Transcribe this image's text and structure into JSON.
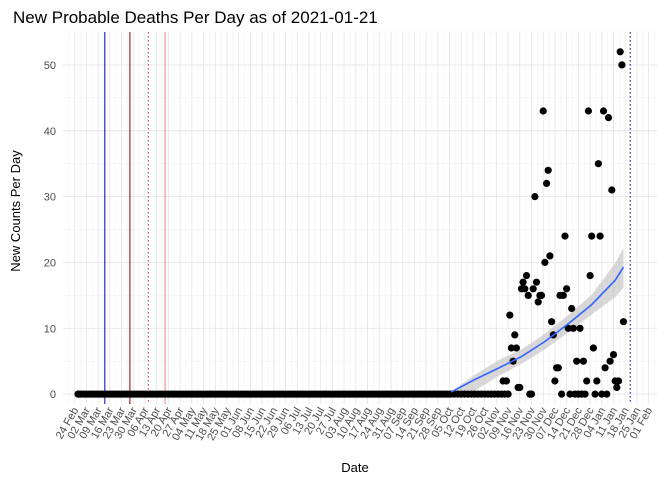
{
  "chart_data": {
    "type": "scatter",
    "title": "New Probable Deaths Per Day as of 2021-01-21",
    "xlabel": "Date",
    "ylabel": "New Counts Per Day",
    "x_ticks": [
      "24 Feb",
      "02 Mar",
      "09 Mar",
      "16 Mar",
      "23 Mar",
      "30 Mar",
      "06 Apr",
      "13 Apr",
      "20 Apr",
      "27 Apr",
      "04 May",
      "11 May",
      "18 May",
      "25 May",
      "01 Jun",
      "08 Jun",
      "15 Jun",
      "22 Jun",
      "29 Jun",
      "06 Jul",
      "13 Jul",
      "20 Jul",
      "27 Jul",
      "03 Aug",
      "10 Aug",
      "17 Aug",
      "24 Aug",
      "31 Aug",
      "07 Sep",
      "14 Sep",
      "21 Sep",
      "28 Sep",
      "05 Oct",
      "12 Oct",
      "19 Oct",
      "26 Oct",
      "02 Nov",
      "09 Nov",
      "16 Nov",
      "23 Nov",
      "30 Nov",
      "07 Dec",
      "14 Dec",
      "21 Dec",
      "28 Dec",
      "04 Jan",
      "11 Jan",
      "18 Jan",
      "25 Jan",
      "01 Feb"
    ],
    "y_ticks": [
      "0",
      "10",
      "20",
      "30",
      "40",
      "50"
    ],
    "ylim": [
      -1.5,
      55
    ],
    "grid": true,
    "reference_lines": [
      {
        "date": "2020-03-13",
        "color": "#0000cd",
        "style": "solid"
      },
      {
        "date": "2020-03-28",
        "color": "#8b0000",
        "style": "solid"
      },
      {
        "date": "2020-04-08",
        "color": "#cd2626",
        "style": "dotted"
      },
      {
        "date": "2020-04-18",
        "color": "#f08080",
        "style": "solid"
      },
      {
        "date": "2021-01-21",
        "color": "#00008b",
        "style": "dotted"
      }
    ],
    "point_color": "#000000",
    "smooth_color": "#3366ff",
    "band_color": "#bebebe",
    "zero_baseline": {
      "start": "2020-02-26",
      "end": "2020-10-05",
      "value": 0
    },
    "points": [
      {
        "x": "2020-10-06",
        "y": 0
      },
      {
        "x": "2020-10-08",
        "y": 0
      },
      {
        "x": "2020-10-10",
        "y": 0
      },
      {
        "x": "2020-10-12",
        "y": 0
      },
      {
        "x": "2020-10-14",
        "y": 0
      },
      {
        "x": "2020-10-16",
        "y": 0
      },
      {
        "x": "2020-10-18",
        "y": 0
      },
      {
        "x": "2020-10-20",
        "y": 0
      },
      {
        "x": "2020-10-22",
        "y": 0
      },
      {
        "x": "2020-10-24",
        "y": 0
      },
      {
        "x": "2020-10-26",
        "y": 0
      },
      {
        "x": "2020-10-28",
        "y": 0
      },
      {
        "x": "2020-10-30",
        "y": 0
      },
      {
        "x": "2020-11-01",
        "y": 0
      },
      {
        "x": "2020-11-03",
        "y": 0
      },
      {
        "x": "2020-11-05",
        "y": 0
      },
      {
        "x": "2020-11-06",
        "y": 2
      },
      {
        "x": "2020-11-07",
        "y": 0
      },
      {
        "x": "2020-11-08",
        "y": 2
      },
      {
        "x": "2020-11-09",
        "y": 0
      },
      {
        "x": "2020-11-10",
        "y": 12
      },
      {
        "x": "2020-11-11",
        "y": 7
      },
      {
        "x": "2020-11-12",
        "y": 5
      },
      {
        "x": "2020-11-13",
        "y": 9
      },
      {
        "x": "2020-11-14",
        "y": 7
      },
      {
        "x": "2020-11-15",
        "y": 1
      },
      {
        "x": "2020-11-16",
        "y": 1
      },
      {
        "x": "2020-11-17",
        "y": 16
      },
      {
        "x": "2020-11-18",
        "y": 17
      },
      {
        "x": "2020-11-19",
        "y": 16
      },
      {
        "x": "2020-11-20",
        "y": 18
      },
      {
        "x": "2020-11-21",
        "y": 15
      },
      {
        "x": "2020-11-22",
        "y": 0
      },
      {
        "x": "2020-11-23",
        "y": 0
      },
      {
        "x": "2020-11-24",
        "y": 16
      },
      {
        "x": "2020-11-25",
        "y": 30
      },
      {
        "x": "2020-11-26",
        "y": 17
      },
      {
        "x": "2020-11-27",
        "y": 14
      },
      {
        "x": "2020-11-28",
        "y": 15
      },
      {
        "x": "2020-11-29",
        "y": 15
      },
      {
        "x": "2020-11-30",
        "y": 43
      },
      {
        "x": "2020-12-01",
        "y": 20
      },
      {
        "x": "2020-12-02",
        "y": 32
      },
      {
        "x": "2020-12-03",
        "y": 34
      },
      {
        "x": "2020-12-04",
        "y": 21
      },
      {
        "x": "2020-12-05",
        "y": 11
      },
      {
        "x": "2020-12-06",
        "y": 9
      },
      {
        "x": "2020-12-07",
        "y": 2
      },
      {
        "x": "2020-12-08",
        "y": 4
      },
      {
        "x": "2020-12-09",
        "y": 4
      },
      {
        "x": "2020-12-10",
        "y": 15
      },
      {
        "x": "2020-12-11",
        "y": 0
      },
      {
        "x": "2020-12-12",
        "y": 15
      },
      {
        "x": "2020-12-13",
        "y": 24
      },
      {
        "x": "2020-12-14",
        "y": 16
      },
      {
        "x": "2020-12-15",
        "y": 10
      },
      {
        "x": "2020-12-16",
        "y": 0
      },
      {
        "x": "2020-12-17",
        "y": 13
      },
      {
        "x": "2020-12-18",
        "y": 10
      },
      {
        "x": "2020-12-19",
        "y": 0
      },
      {
        "x": "2020-12-20",
        "y": 5
      },
      {
        "x": "2020-12-21",
        "y": 0
      },
      {
        "x": "2020-12-22",
        "y": 10
      },
      {
        "x": "2020-12-23",
        "y": 0
      },
      {
        "x": "2020-12-24",
        "y": 5
      },
      {
        "x": "2020-12-25",
        "y": 0
      },
      {
        "x": "2020-12-26",
        "y": 2
      },
      {
        "x": "2020-12-27",
        "y": 43
      },
      {
        "x": "2020-12-28",
        "y": 18
      },
      {
        "x": "2020-12-29",
        "y": 24
      },
      {
        "x": "2020-12-30",
        "y": 7
      },
      {
        "x": "2020-12-31",
        "y": 0
      },
      {
        "x": "2021-01-01",
        "y": 2
      },
      {
        "x": "2021-01-02",
        "y": 35
      },
      {
        "x": "2021-01-03",
        "y": 24
      },
      {
        "x": "2021-01-04",
        "y": 0
      },
      {
        "x": "2021-01-05",
        "y": 43
      },
      {
        "x": "2021-01-06",
        "y": 4
      },
      {
        "x": "2021-01-07",
        "y": 0
      },
      {
        "x": "2021-01-08",
        "y": 42
      },
      {
        "x": "2021-01-09",
        "y": 5
      },
      {
        "x": "2021-01-10",
        "y": 31
      },
      {
        "x": "2021-01-11",
        "y": 6
      },
      {
        "x": "2021-01-12",
        "y": 2
      },
      {
        "x": "2021-01-13",
        "y": 1
      },
      {
        "x": "2021-01-14",
        "y": 2
      },
      {
        "x": "2021-01-15",
        "y": 52
      },
      {
        "x": "2021-01-16",
        "y": 50
      },
      {
        "x": "2021-01-17",
        "y": 11
      }
    ],
    "smooth": {
      "x": [
        "2020-10-06",
        "2020-10-20",
        "2020-11-03",
        "2020-11-17",
        "2020-12-01",
        "2020-12-15",
        "2020-12-29",
        "2021-01-12",
        "2021-01-17"
      ],
      "y": [
        0.3,
        2.2,
        3.9,
        5.7,
        8.0,
        10.7,
        13.6,
        17.3,
        19.3
      ],
      "lower": [
        0.2,
        0.5,
        2.7,
        4.6,
        6.8,
        9.4,
        12.1,
        14.7,
        16.2
      ],
      "upper": [
        0.4,
        2.9,
        5.1,
        6.8,
        9.2,
        12.0,
        15.1,
        19.9,
        22.2
      ]
    }
  }
}
